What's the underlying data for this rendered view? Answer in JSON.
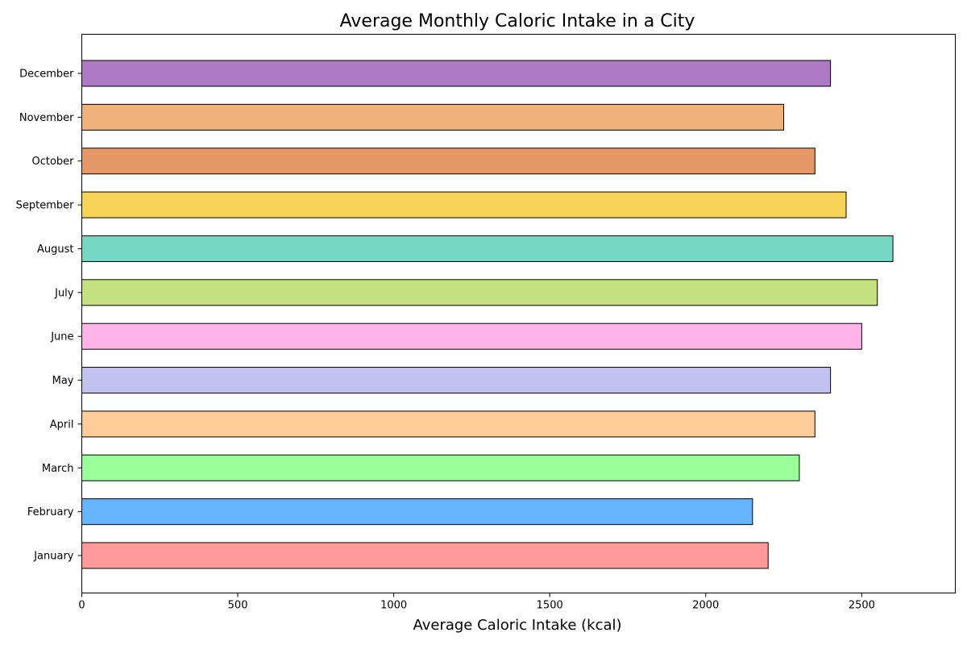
{
  "chart_data": {
    "type": "bar",
    "orientation": "horizontal",
    "title": "Average Monthly Caloric Intake in a City",
    "xlabel": "Average Caloric Intake (kcal)",
    "ylabel": "",
    "xlim": [
      0,
      2800
    ],
    "xticks": [
      0,
      500,
      1000,
      1500,
      2000,
      2500
    ],
    "grid": false,
    "categories": [
      "January",
      "February",
      "March",
      "April",
      "May",
      "June",
      "July",
      "August",
      "September",
      "October",
      "November",
      "December"
    ],
    "values": [
      2200,
      2150,
      2300,
      2350,
      2400,
      2500,
      2550,
      2600,
      2450,
      2350,
      2250,
      2400
    ],
    "colors": [
      "#ff9999",
      "#66b3ff",
      "#99ff99",
      "#ffcc99",
      "#c2c2f0",
      "#ffb3e6",
      "#c4e17f",
      "#76d7c4",
      "#f7d358",
      "#e59866",
      "#f0b27a",
      "#af7ac5"
    ]
  }
}
